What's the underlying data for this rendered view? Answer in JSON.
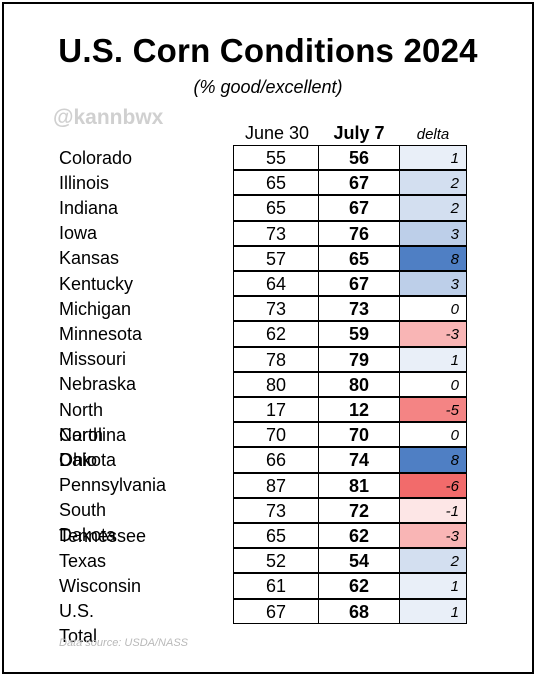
{
  "header": {
    "title": "U.S. Corn Conditions 2024",
    "subtitle": "(% good/excellent)",
    "watermark": "@kannbwx"
  },
  "footer": {
    "source": "Data source: USDA/NASS"
  },
  "colors": {
    "positive_max": "#4f7fc4",
    "negative_max": "#f26b6b",
    "neutral": "#ffffff"
  },
  "chart_data": {
    "type": "table",
    "columns": [
      "June 30",
      "July 7",
      "delta"
    ],
    "rows": [
      {
        "state": "Colorado",
        "june30": 55,
        "july7": 56,
        "delta": 1
      },
      {
        "state": "Illinois",
        "june30": 65,
        "july7": 67,
        "delta": 2
      },
      {
        "state": "Indiana",
        "june30": 65,
        "july7": 67,
        "delta": 2
      },
      {
        "state": "Iowa",
        "june30": 73,
        "july7": 76,
        "delta": 3
      },
      {
        "state": "Kansas",
        "june30": 57,
        "july7": 65,
        "delta": 8
      },
      {
        "state": "Kentucky",
        "june30": 64,
        "july7": 67,
        "delta": 3
      },
      {
        "state": "Michigan",
        "june30": 73,
        "july7": 73,
        "delta": 0
      },
      {
        "state": "Minnesota",
        "june30": 62,
        "july7": 59,
        "delta": -3
      },
      {
        "state": "Missouri",
        "june30": 78,
        "july7": 79,
        "delta": 1
      },
      {
        "state": "Nebraska",
        "june30": 80,
        "july7": 80,
        "delta": 0
      },
      {
        "state": "North Carolina",
        "june30": 17,
        "july7": 12,
        "delta": -5
      },
      {
        "state": "North Dakota",
        "june30": 70,
        "july7": 70,
        "delta": 0
      },
      {
        "state": "Ohio",
        "june30": 66,
        "july7": 74,
        "delta": 8
      },
      {
        "state": "Pennsylvania",
        "june30": 87,
        "july7": 81,
        "delta": -6
      },
      {
        "state": "South Dakota",
        "june30": 73,
        "july7": 72,
        "delta": -1
      },
      {
        "state": "Tennessee",
        "june30": 65,
        "july7": 62,
        "delta": -3
      },
      {
        "state": "Texas",
        "june30": 52,
        "july7": 54,
        "delta": 2
      },
      {
        "state": "Wisconsin",
        "june30": 61,
        "july7": 62,
        "delta": 1
      },
      {
        "state": "U.S. Total",
        "june30": 67,
        "july7": 68,
        "delta": 1
      }
    ]
  }
}
